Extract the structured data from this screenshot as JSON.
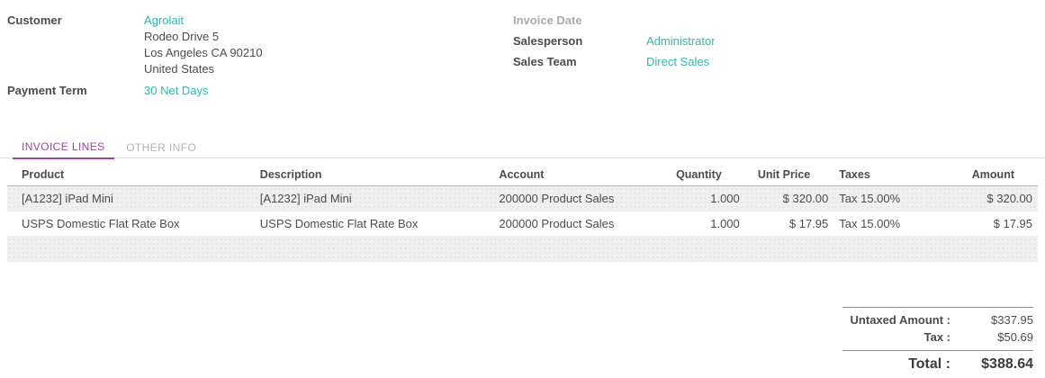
{
  "header": {
    "left": {
      "customer_label": "Customer",
      "customer_name": "Agrolait",
      "address_lines": [
        "Rodeo Drive 5",
        "Los Angeles CA 90210",
        "United States"
      ],
      "payment_term_label": "Payment Term",
      "payment_term_value": "30 Net Days"
    },
    "right": {
      "invoice_date_label": "Invoice Date",
      "invoice_date_value": "",
      "salesperson_label": "Salesperson",
      "salesperson_value": "Administrator",
      "sales_team_label": "Sales Team",
      "sales_team_value": "Direct Sales"
    }
  },
  "tabs": [
    {
      "label": "INVOICE LINES",
      "active": true
    },
    {
      "label": "OTHER INFO",
      "active": false
    }
  ],
  "invoice_table": {
    "columns": [
      "Product",
      "Description",
      "Account",
      "Quantity",
      "Unit Price",
      "Taxes",
      "Amount"
    ],
    "rows": [
      {
        "product": "[A1232] iPad Mini",
        "description": "[A1232] iPad Mini",
        "account": "200000 Product Sales",
        "quantity": "1.000",
        "unit_price": "$ 320.00",
        "taxes": "Tax 15.00%",
        "amount": "$ 320.00"
      },
      {
        "product": "USPS Domestic Flat Rate Box",
        "description": "USPS Domestic Flat Rate Box",
        "account": "200000 Product Sales",
        "quantity": "1.000",
        "unit_price": "$ 17.95",
        "taxes": "Tax 15.00%",
        "amount": "$ 17.95"
      }
    ]
  },
  "totals": {
    "untaxed_label": "Untaxed Amount :",
    "untaxed_value": "$337.95",
    "tax_label": "Tax :",
    "tax_value": "$50.69",
    "total_label": "Total :",
    "total_value": "$388.64"
  },
  "colors": {
    "accent_teal": "#2db9aa",
    "accent_purple": "#a0459b",
    "muted_label": "#aaaaaa",
    "stripe_row": "#f0f0f0"
  }
}
